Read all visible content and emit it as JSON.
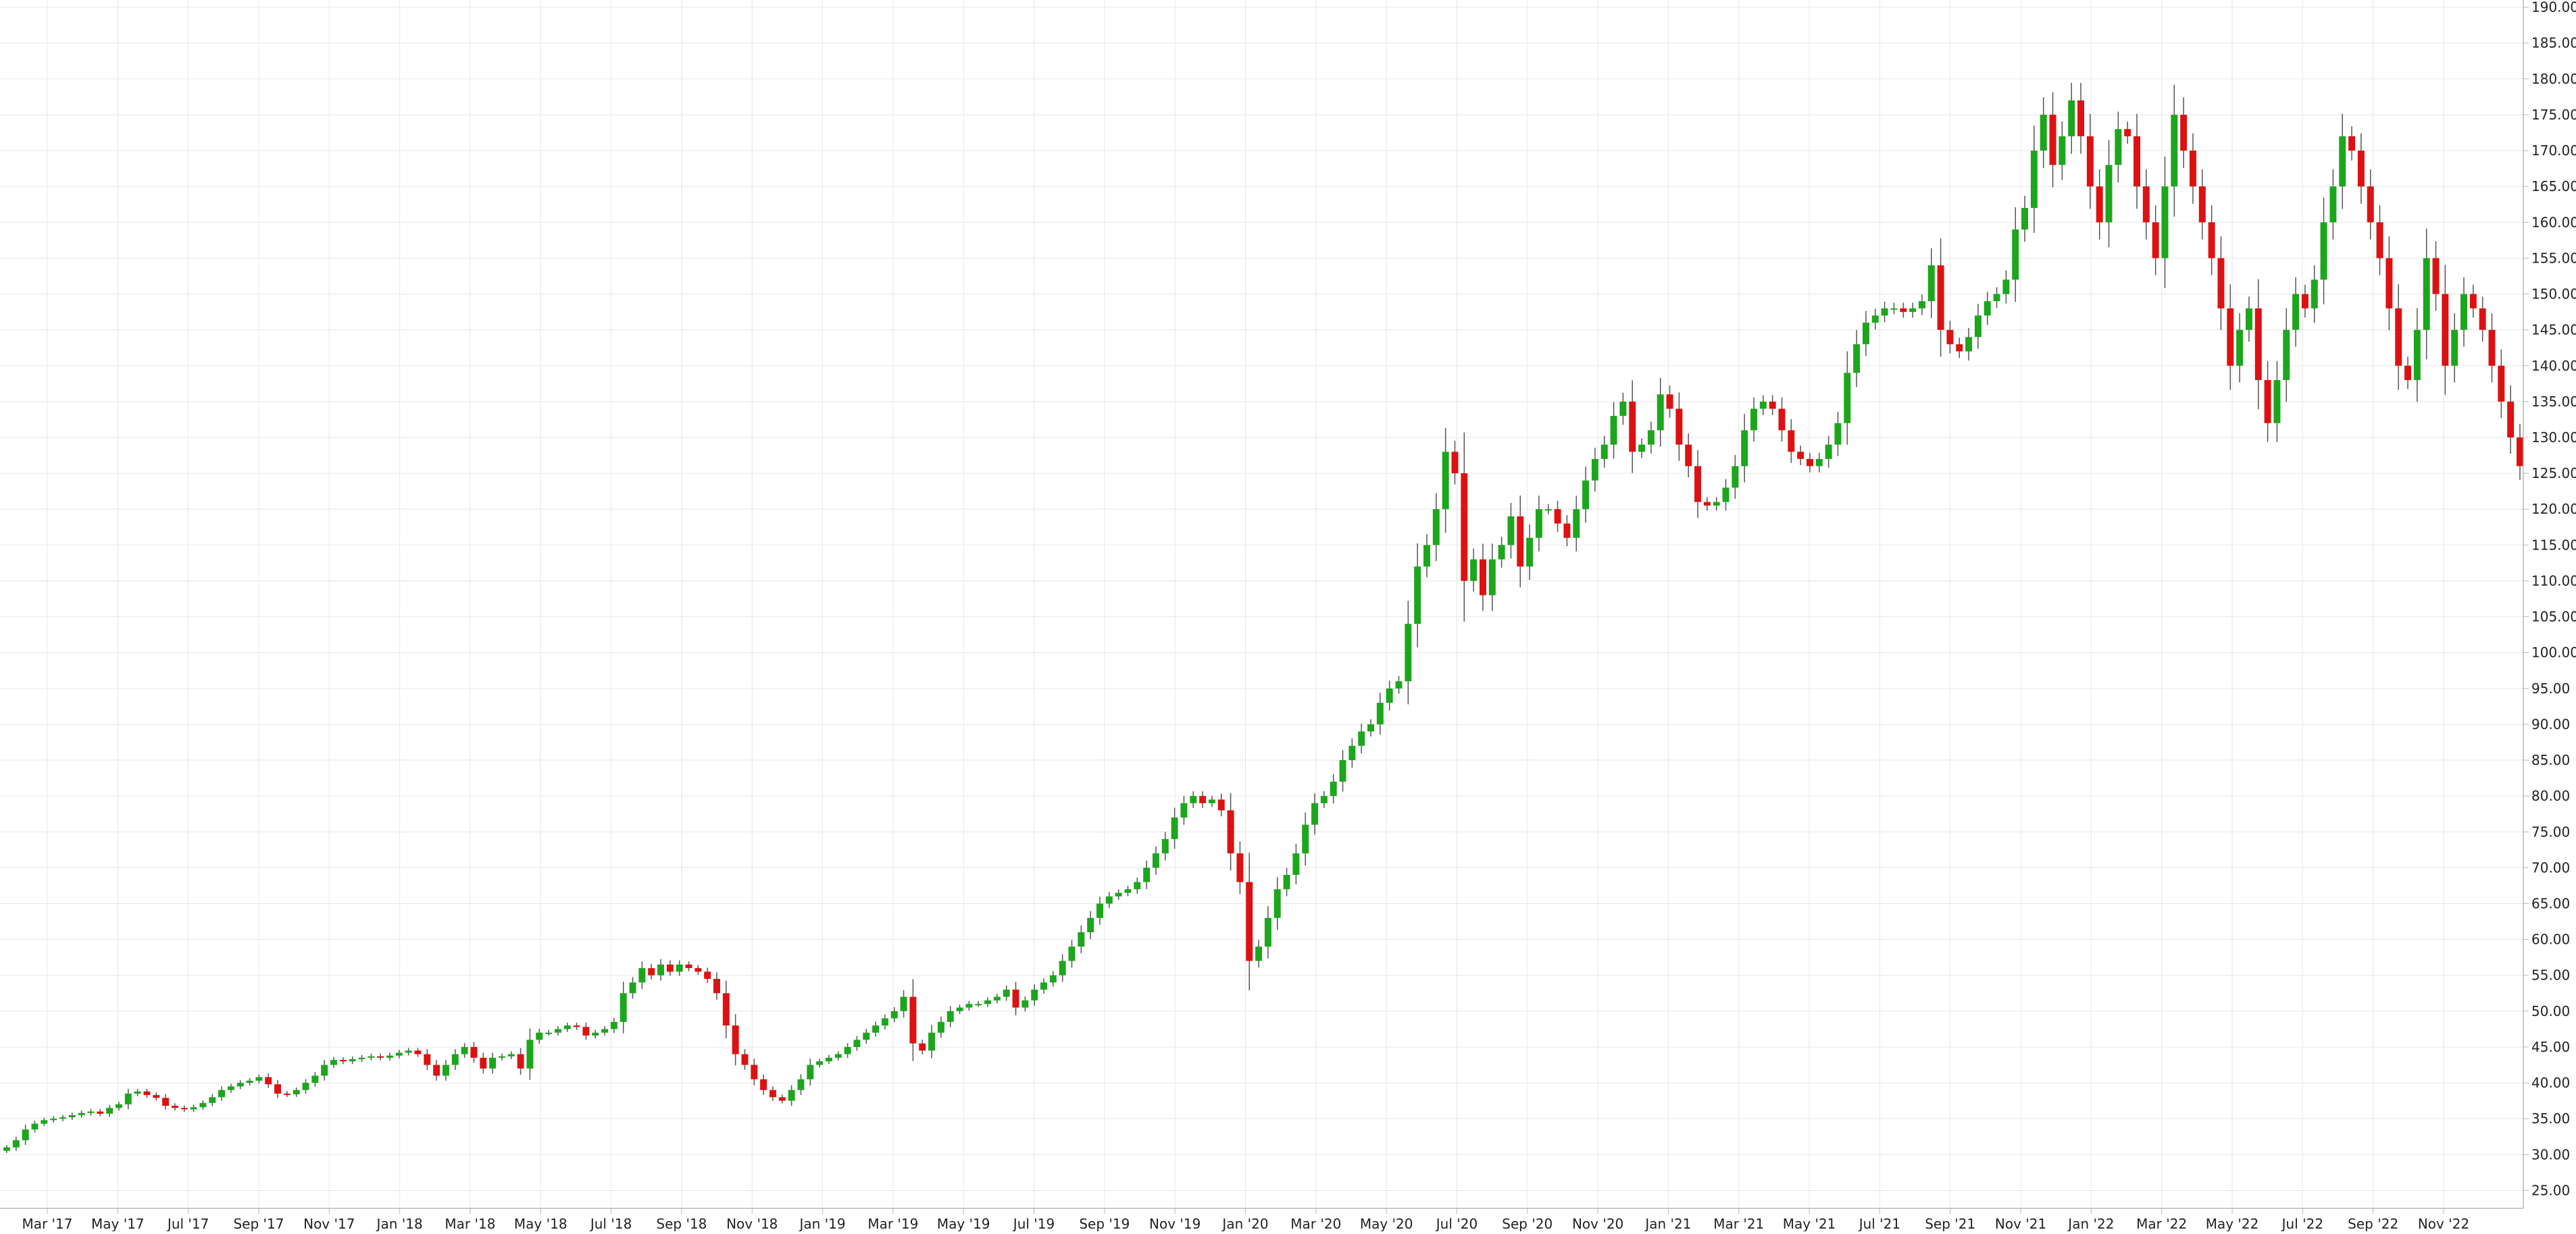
{
  "colors": {
    "background": "#ffffff",
    "grid": "#e6e6e6",
    "axis": "#b8b8b8",
    "text": "#222222",
    "up": "#1ca61c",
    "down": "#dd1111",
    "wick": "#555555"
  },
  "chart_data": {
    "type": "candlestick",
    "title": "",
    "xlabel": "",
    "ylabel": "",
    "grid": true,
    "legend": "none",
    "ylim": [
      22.5,
      191
    ],
    "y_ticks": [
      "25.00",
      "30.00",
      "35.00",
      "40.00",
      "45.00",
      "50.00",
      "55.00",
      "60.00",
      "65.00",
      "70.00",
      "75.00",
      "80.00",
      "85.00",
      "90.00",
      "95.00",
      "100.00",
      "105.00",
      "110.00",
      "115.00",
      "120.00",
      "125.00",
      "130.00",
      "135.00",
      "140.00",
      "145.00",
      "150.00",
      "155.00",
      "160.00",
      "165.00",
      "170.00",
      "175.00",
      "180.00",
      "185.00",
      "190.00"
    ],
    "x_ticks": [
      "Mar '17",
      "May '17",
      "Jul '17",
      "Sep '17",
      "Nov '17",
      "Jan '18",
      "Mar '18",
      "May '18",
      "Jul '18",
      "Sep '18",
      "Nov '18",
      "Jan '19",
      "Mar '19",
      "May '19",
      "Jul '19",
      "Sep '19",
      "Nov '19",
      "Jan '20",
      "Mar '20",
      "May '20",
      "Jul '20",
      "Sep '20",
      "Nov '20",
      "Jan '21",
      "Mar '21",
      "May '21",
      "Jul '21",
      "Sep '21",
      "Nov '21",
      "Jan '22",
      "Mar '22",
      "May '22",
      "Jul '22",
      "Sep '22",
      "Nov '22"
    ],
    "weekly_close": [
      31,
      32,
      33.5,
      34.3,
      34.8,
      35,
      35.2,
      35.5,
      35.8,
      36,
      35.7,
      36.5,
      37,
      38.5,
      38.8,
      38.3,
      37.9,
      36.8,
      36.5,
      36.3,
      36.6,
      37.2,
      38,
      39,
      39.5,
      40,
      40.3,
      40.8,
      39.8,
      38.5,
      38.4,
      39,
      40,
      41,
      42.5,
      43.2,
      43,
      43.3,
      43.5,
      43.7,
      43.5,
      43.8,
      44.2,
      44.5,
      44,
      42.5,
      41,
      42.5,
      44,
      45,
      43.5,
      42,
      43.5,
      43.7,
      44,
      42,
      46,
      47,
      47,
      47.5,
      48,
      47.8,
      46.6,
      47,
      47.5,
      48.5,
      52.5,
      54,
      56,
      55,
      56.5,
      55.5,
      56.5,
      56,
      55.5,
      54.5,
      52.5,
      48,
      44,
      42.5,
      40.5,
      39,
      38,
      37.5,
      39,
      40.5,
      42.5,
      43,
      43.5,
      44,
      45,
      46,
      47,
      48,
      49,
      50,
      52,
      45.5,
      44.5,
      47,
      48.5,
      50,
      50.5,
      51,
      51,
      51.5,
      52,
      53,
      50.5,
      51.5,
      53,
      54,
      55,
      57,
      59,
      61,
      63,
      65,
      66,
      66.5,
      67,
      68,
      70,
      72,
      74,
      77,
      79,
      80,
      79,
      79.5,
      78,
      72,
      68,
      57,
      59,
      63,
      67,
      69,
      72,
      76,
      79,
      80,
      82,
      85,
      87,
      89,
      90,
      93,
      95,
      96,
      104,
      112,
      115,
      120,
      128,
      125,
      110,
      113,
      108,
      113,
      115,
      119,
      112,
      116,
      120,
      120,
      118,
      116,
      120,
      124,
      127,
      129,
      133,
      135,
      128,
      129,
      131,
      136,
      134,
      129,
      126,
      121,
      120.5,
      121,
      123,
      126,
      131,
      134,
      135,
      134,
      131,
      128,
      127,
      126,
      127,
      129,
      132,
      139,
      143,
      146,
      147,
      148,
      148,
      147.5,
      148,
      149,
      154,
      145,
      143,
      142,
      144,
      147,
      149,
      150,
      152,
      159,
      162,
      170,
      175,
      168,
      172,
      177,
      172,
      165,
      160,
      168,
      173,
      172,
      165,
      160,
      155,
      165,
      175,
      170,
      165,
      160,
      155,
      148,
      140,
      145,
      148,
      138,
      132,
      138,
      145,
      150,
      148,
      152,
      160,
      165,
      172,
      170,
      165,
      160,
      155,
      148,
      140,
      138,
      145,
      155,
      150,
      140,
      145,
      150,
      148,
      145,
      140,
      135,
      130,
      126
    ]
  }
}
